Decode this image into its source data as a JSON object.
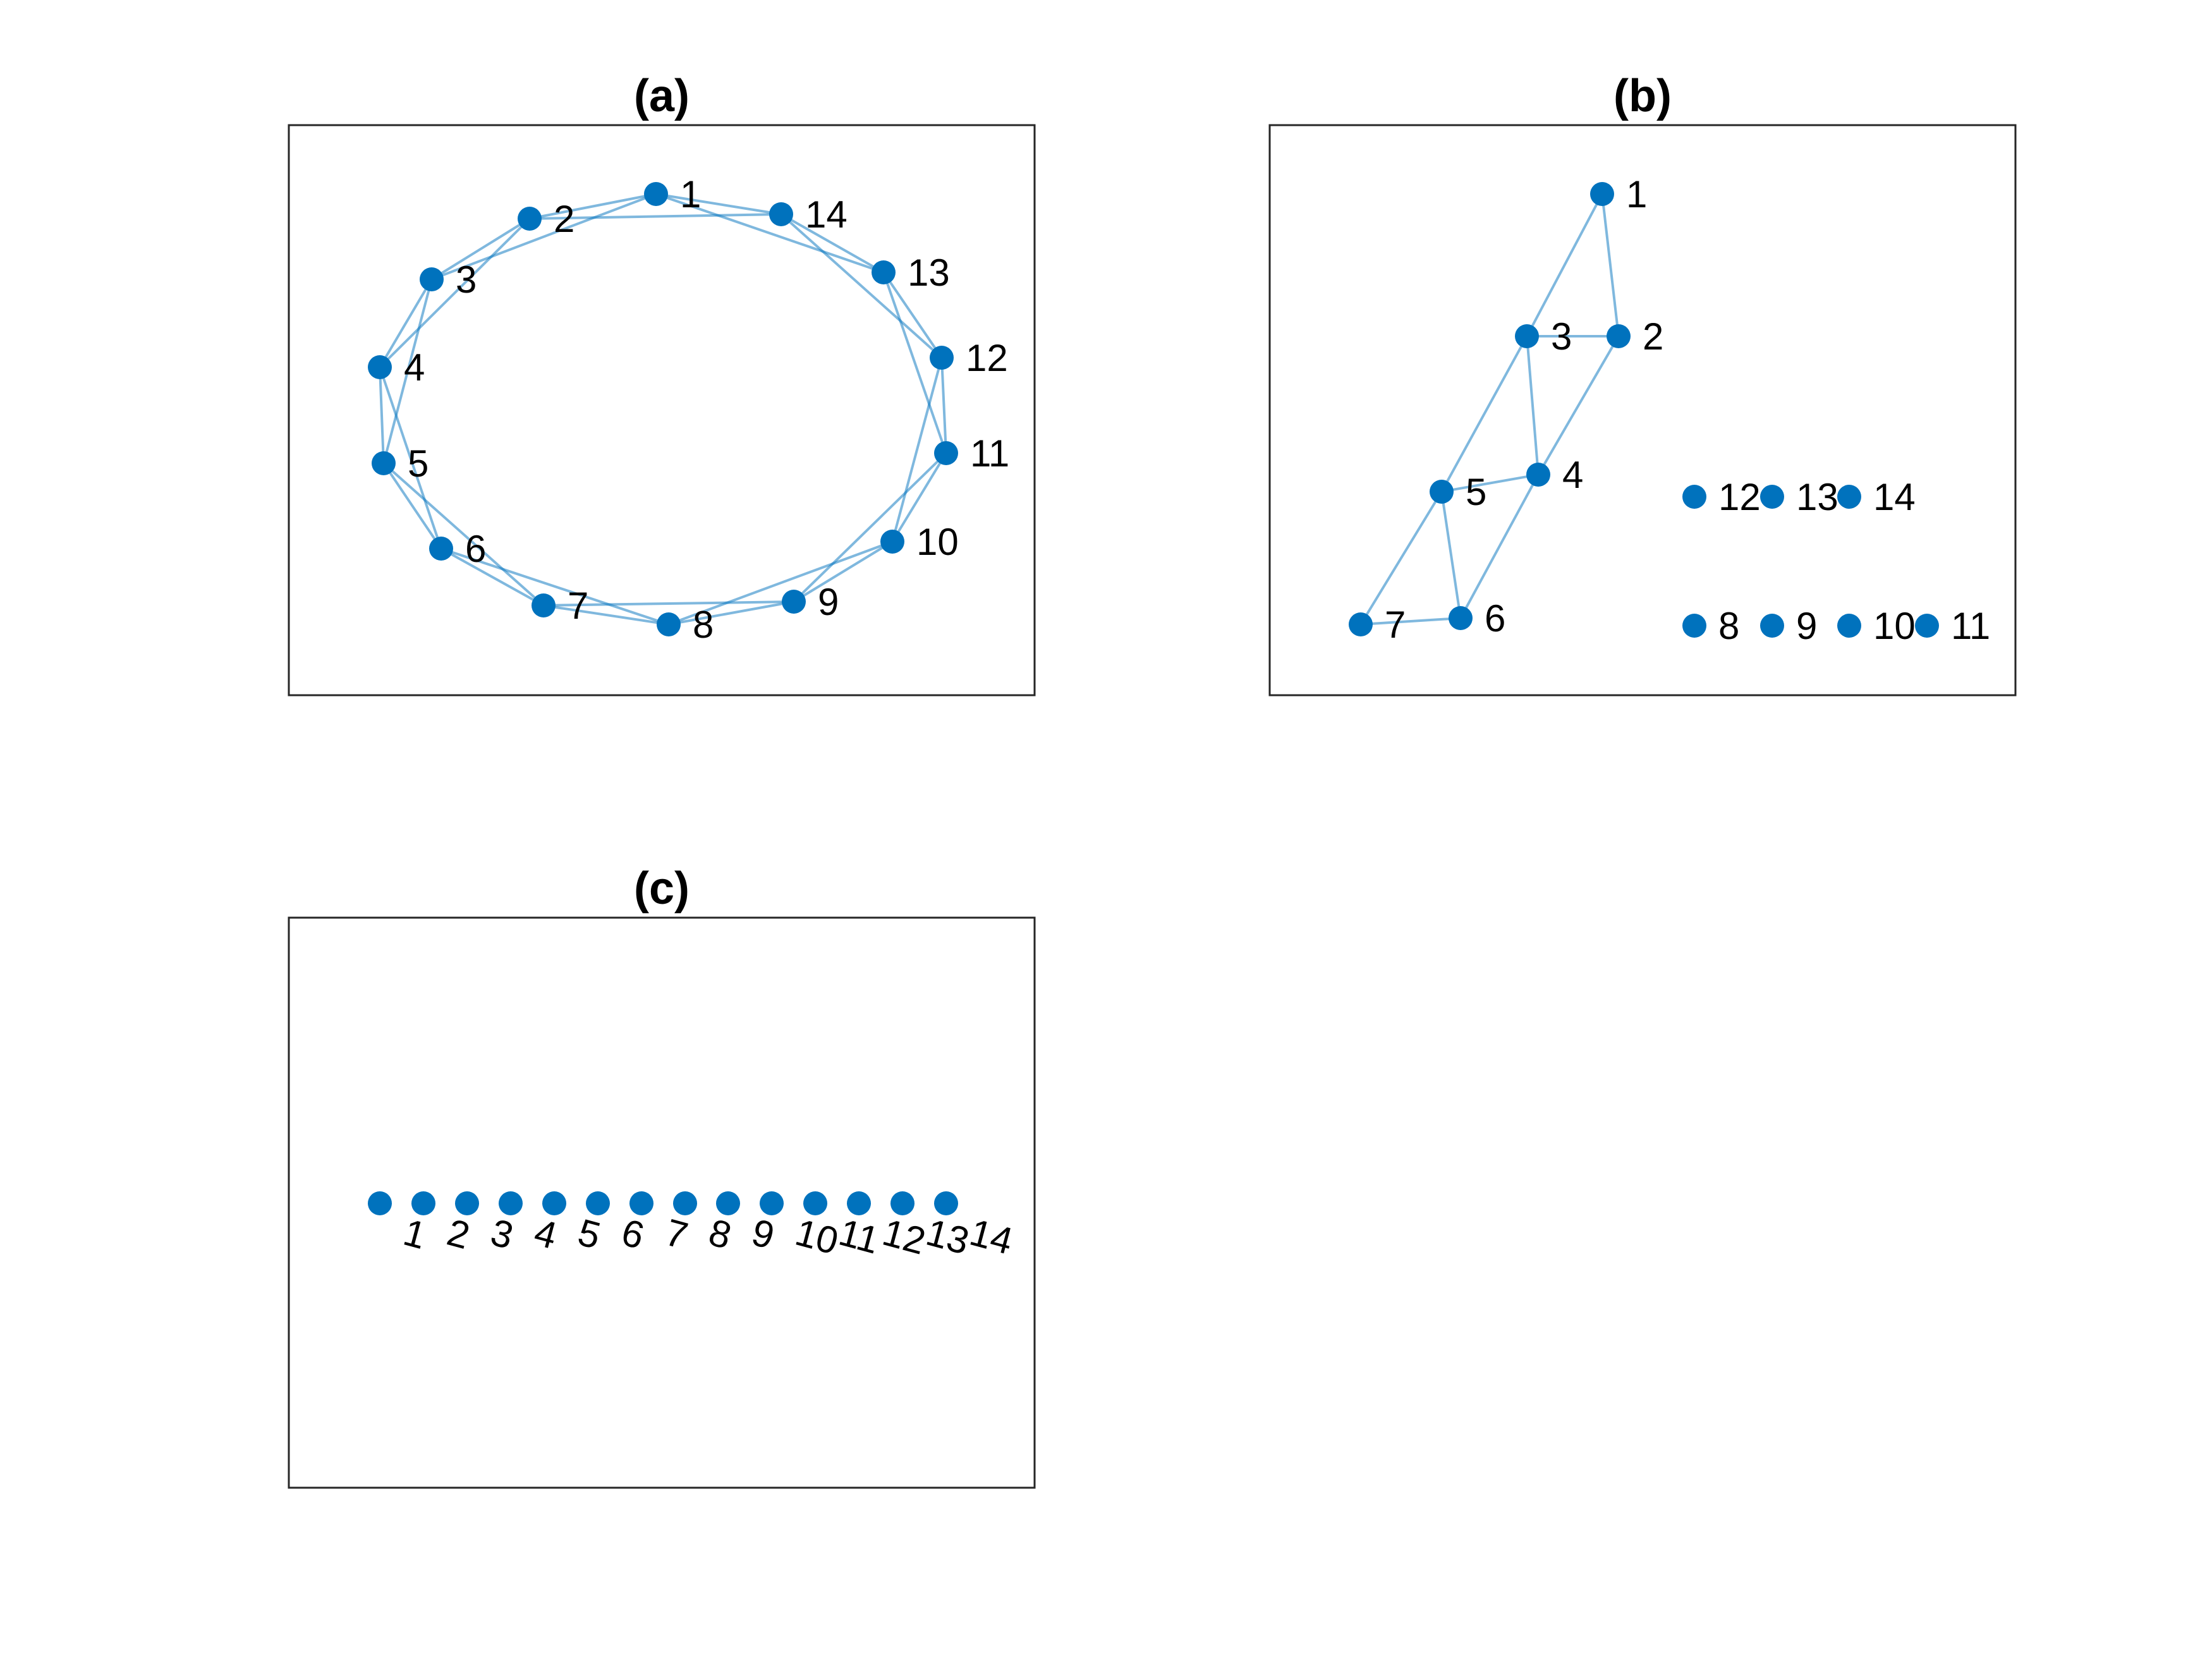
{
  "figure": {
    "node_color": "#0072BD",
    "edge_color": "#0072BD",
    "panels": [
      {
        "id": "a",
        "title": "(a)",
        "nodes": [
          {
            "label": "1"
          },
          {
            "label": "2"
          },
          {
            "label": "3"
          },
          {
            "label": "4"
          },
          {
            "label": "5"
          },
          {
            "label": "6"
          },
          {
            "label": "7"
          },
          {
            "label": "8"
          },
          {
            "label": "9"
          },
          {
            "label": "10"
          },
          {
            "label": "11"
          },
          {
            "label": "12"
          },
          {
            "label": "13"
          },
          {
            "label": "14"
          }
        ],
        "edges": [
          [
            1,
            2
          ],
          [
            1,
            3
          ],
          [
            1,
            13
          ],
          [
            1,
            14
          ],
          [
            2,
            3
          ],
          [
            2,
            4
          ],
          [
            2,
            14
          ],
          [
            3,
            4
          ],
          [
            3,
            5
          ],
          [
            4,
            5
          ],
          [
            4,
            6
          ],
          [
            5,
            6
          ],
          [
            5,
            7
          ],
          [
            6,
            7
          ],
          [
            6,
            8
          ],
          [
            7,
            8
          ],
          [
            7,
            9
          ],
          [
            8,
            9
          ],
          [
            8,
            10
          ],
          [
            9,
            10
          ],
          [
            9,
            11
          ],
          [
            10,
            11
          ],
          [
            10,
            12
          ],
          [
            11,
            12
          ],
          [
            11,
            13
          ],
          [
            12,
            13
          ],
          [
            12,
            14
          ],
          [
            13,
            14
          ]
        ]
      },
      {
        "id": "b",
        "title": "(b)",
        "nodes": [
          {
            "label": "1"
          },
          {
            "label": "2"
          },
          {
            "label": "3"
          },
          {
            "label": "4"
          },
          {
            "label": "5"
          },
          {
            "label": "6"
          },
          {
            "label": "7"
          },
          {
            "label": "8"
          },
          {
            "label": "9"
          },
          {
            "label": "10"
          },
          {
            "label": "11"
          },
          {
            "label": "12"
          },
          {
            "label": "13"
          },
          {
            "label": "14"
          }
        ],
        "edges": [
          [
            1,
            2
          ],
          [
            1,
            3
          ],
          [
            2,
            3
          ],
          [
            2,
            4
          ],
          [
            3,
            4
          ],
          [
            3,
            5
          ],
          [
            4,
            5
          ],
          [
            4,
            6
          ],
          [
            5,
            6
          ],
          [
            5,
            7
          ],
          [
            6,
            7
          ]
        ]
      },
      {
        "id": "c",
        "title": "(c)",
        "nodes": [
          {
            "label": "1"
          },
          {
            "label": "2"
          },
          {
            "label": "3"
          },
          {
            "label": "4"
          },
          {
            "label": "5"
          },
          {
            "label": "6"
          },
          {
            "label": "7"
          },
          {
            "label": "8"
          },
          {
            "label": "9"
          },
          {
            "label": "10"
          },
          {
            "label": "11"
          },
          {
            "label": "12"
          },
          {
            "label": "13"
          },
          {
            "label": "14"
          }
        ],
        "edges": []
      }
    ]
  }
}
